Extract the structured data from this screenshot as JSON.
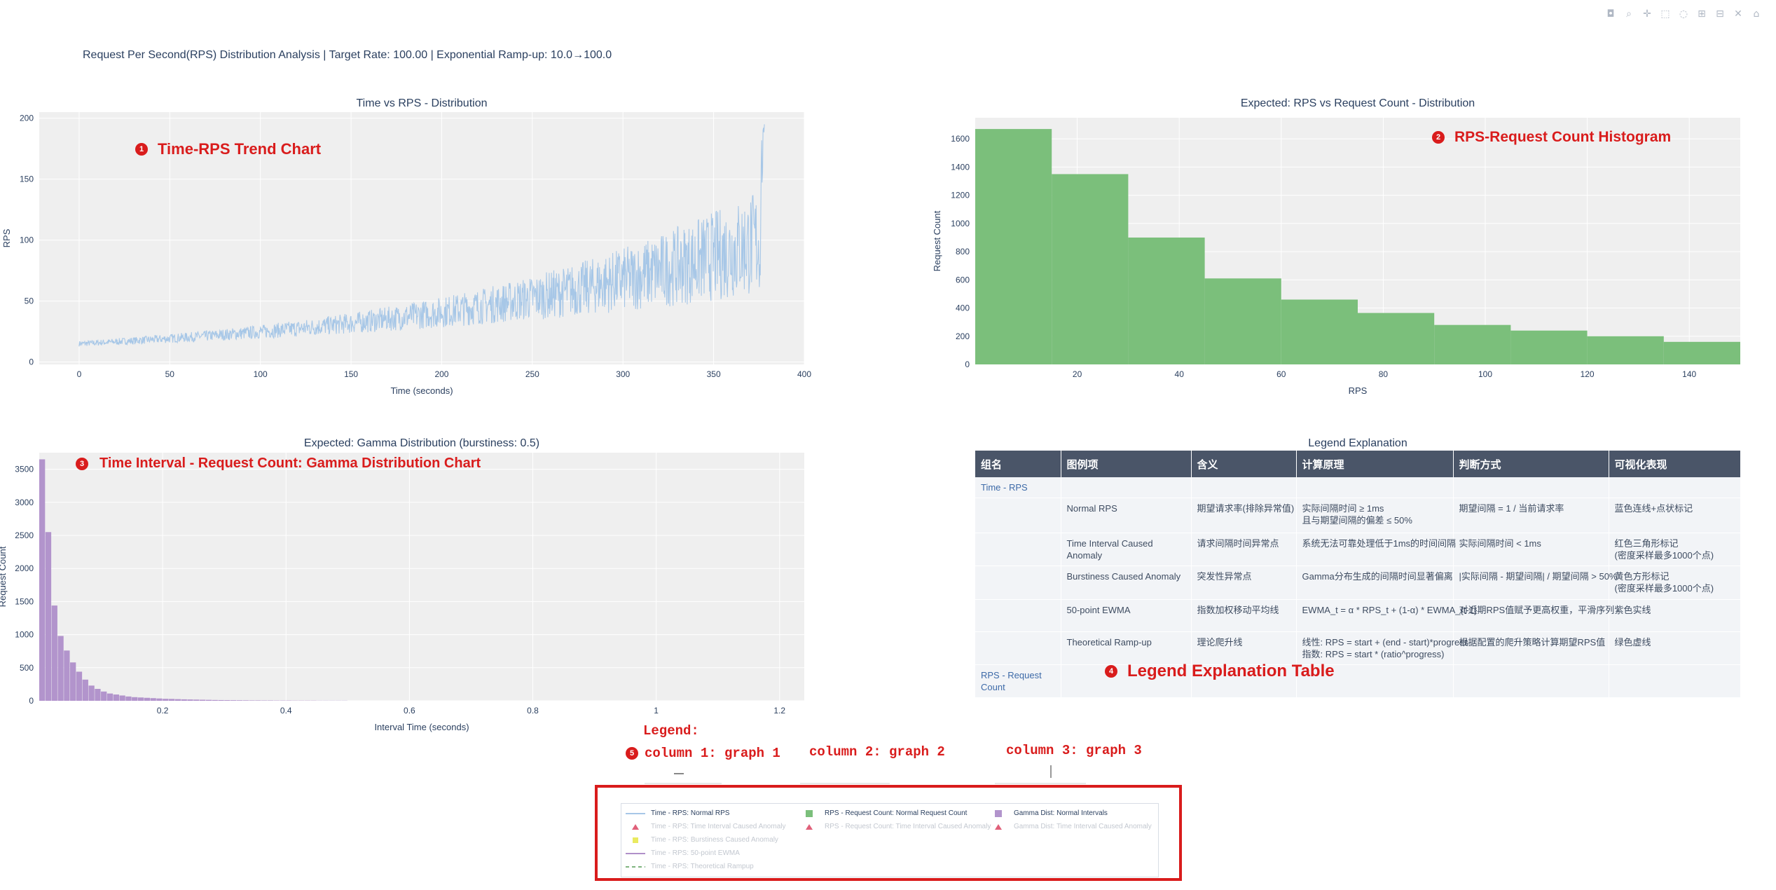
{
  "figure_title": "Request Per Second(RPS) Distribution Analysis | Target Rate: 100.00 | Exponential Ramp-up: 10.0→100.0",
  "modebar": [
    "camera-icon",
    "zoom-icon",
    "pan-icon",
    "box-select-icon",
    "lasso-icon",
    "zoom-in-icon",
    "zoom-out-icon",
    "autoscale-icon",
    "reset-icon"
  ],
  "annotations": {
    "a1": {
      "num": "1",
      "text": "Time-RPS Trend Chart"
    },
    "a2": {
      "num": "2",
      "text": "RPS-Request Count Histogram"
    },
    "a3": {
      "num": "3",
      "text": "Time Interval - Request Count: Gamma Distribution Chart"
    },
    "a4": {
      "num": "4",
      "text": "Legend Explanation Table"
    },
    "a5": {
      "num": "5",
      "legend_label": "Legend:",
      "col1": "column 1: graph 1",
      "col2": "column 2: graph 2",
      "col3": "column 3: graph 3"
    }
  },
  "colors": {
    "blue": "#a7c7e7",
    "green": "#7bbf7b",
    "purple": "#b294cc",
    "plot_bg": "#efefef",
    "accent": "#d91c1c"
  },
  "chart_data": [
    {
      "type": "line",
      "title": "Time vs RPS - Distribution",
      "xlabel": "Time (seconds)",
      "ylabel": "RPS",
      "xlim": [
        -22,
        400
      ],
      "ylim": [
        -2,
        205
      ],
      "xticks": [
        0,
        50,
        100,
        150,
        200,
        250,
        300,
        350,
        400
      ],
      "yticks": [
        0,
        50,
        100,
        150,
        200
      ],
      "series": [
        {
          "name": "Time - RPS: Normal RPS",
          "x_range": [
            0,
            378
          ],
          "trend_start": 15,
          "trend_end": 100,
          "peak": 195
        }
      ]
    },
    {
      "type": "bar",
      "title": "Expected: RPS vs Request Count - Distribution",
      "xlabel": "RPS",
      "ylabel": "Request Count",
      "xlim": [
        0,
        150
      ],
      "ylim": [
        0,
        1750
      ],
      "xticks": [
        20,
        40,
        60,
        80,
        100,
        120,
        140
      ],
      "yticks": [
        0,
        200,
        400,
        600,
        800,
        1000,
        1200,
        1400,
        1600
      ],
      "bin_edges": [
        0,
        15,
        30,
        45,
        60,
        75,
        90,
        105,
        120,
        135,
        150
      ],
      "values": [
        1670,
        1350,
        900,
        610,
        460,
        365,
        280,
        240,
        200,
        160
      ]
    },
    {
      "type": "bar",
      "title": "Expected: Gamma Distribution (burstiness: 0.5)",
      "xlabel": "Interval Time (seconds)",
      "ylabel": "Request Count",
      "xlim": [
        0,
        1.24
      ],
      "ylim": [
        0,
        3750
      ],
      "xticks": [
        0.2,
        0.4,
        0.6,
        0.8,
        1,
        1.2
      ],
      "yticks": [
        0,
        500,
        1000,
        1500,
        2000,
        2500,
        3000,
        3500
      ],
      "bin_width": 0.01,
      "values": [
        3650,
        2550,
        1440,
        980,
        760,
        580,
        440,
        320,
        230,
        180,
        140,
        110,
        95,
        80,
        65,
        55,
        50,
        45,
        40,
        35,
        30,
        28,
        25,
        22,
        20,
        18,
        16,
        14,
        12,
        11,
        10,
        9,
        8,
        7,
        6,
        6,
        5,
        5,
        4,
        4,
        4,
        3,
        3,
        3,
        3,
        2,
        2,
        2,
        2,
        2
      ]
    }
  ],
  "table": {
    "title": "Legend Explanation",
    "headers": [
      "组名",
      "图例项",
      "含义",
      "计算原理",
      "判断方式",
      "可视化表现"
    ],
    "rows": [
      {
        "group": "Time - RPS",
        "item": "",
        "meaning": "",
        "calc": "",
        "judge": "",
        "visual": ""
      },
      {
        "group": "",
        "item": "Normal RPS",
        "meaning": "期望请求率(排除异常值)",
        "calc": "实际间隔时间 ≥ 1ms\n且与期望间隔的偏差 ≤ 50%",
        "judge": "期望间隔 = 1 / 当前请求率",
        "visual": "蓝色连线+点状标记"
      },
      {
        "group": "",
        "item": "Time Interval Caused Anomaly",
        "meaning": "请求间隔时间异常点",
        "calc": "系统无法可靠处理低于1ms的时间间隔",
        "judge": "实际间隔时间 < 1ms",
        "visual": "红色三角形标记\n(密度采样最多1000个点)"
      },
      {
        "group": "",
        "item": "Burstiness Caused Anomaly",
        "meaning": "突发性异常点",
        "calc": "Gamma分布生成的间隔时间显著偏离",
        "judge": "|实际间隔 - 期望间隔| / 期望间隔 > 50%",
        "visual": "黄色方形标记\n(密度采样最多1000个点)"
      },
      {
        "group": "",
        "item": "50-point EWMA",
        "meaning": "指数加权移动平均线",
        "calc": "EWMA_t = α * RPS_t + (1-α) * EWMA_{t-1}",
        "judge": "对近期RPS值赋予更高权重，平滑序列",
        "visual": "紫色实线"
      },
      {
        "group": "",
        "item": "Theoretical Ramp-up",
        "meaning": "理论爬升线",
        "calc": "线性: RPS = start + (end - start)*progress\n指数: RPS = start * (ratio^progress)",
        "judge": "根据配置的爬升策略计算期望RPS值",
        "visual": "绿色虚线"
      },
      {
        "group": "RPS - Request Count",
        "item": "",
        "meaning": "",
        "calc": "",
        "judge": "",
        "visual": ""
      }
    ]
  },
  "legend": {
    "col1": [
      "Time - RPS: Normal RPS",
      "Time - RPS: Time Interval Caused Anomaly",
      "Time - RPS: Burstiness Caused Anomaly",
      "Time - RPS: 50-point EWMA",
      "Time - RPS: Theoretical Rampup"
    ],
    "col2": [
      "RPS - Request Count: Normal Request Count",
      "RPS - Request Count: Time Interval Caused Anomaly"
    ],
    "col3": [
      "Gamma Dist: Normal Intervals",
      "Gamma Dist: Time Interval Caused Anomaly"
    ]
  }
}
